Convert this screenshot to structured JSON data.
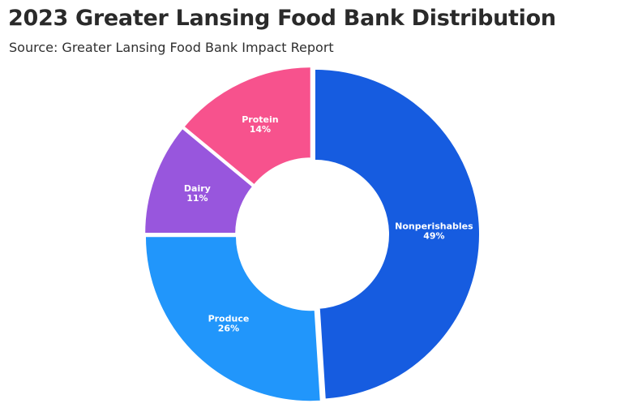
{
  "header": {
    "title": "2023 Greater Lansing Food Bank Distribution",
    "subtitle": "Source: Greater Lansing Food Bank Impact Report"
  },
  "chart_data": {
    "type": "pie",
    "donut": true,
    "title": "2023 Greater Lansing Food Bank Distribution",
    "subtitle": "Source: Greater Lansing Food Bank Impact Report",
    "slices": [
      {
        "name": "Nonperishables",
        "value": 49,
        "label": "49%",
        "color": "#165CE0"
      },
      {
        "name": "Produce",
        "value": 26,
        "label": "26%",
        "color": "#2196FB"
      },
      {
        "name": "Dairy",
        "value": 11,
        "label": "11%",
        "color": "#9856DD"
      },
      {
        "name": "Protein",
        "value": 14,
        "label": "14%",
        "color": "#F7528D"
      }
    ],
    "start_angle_deg": 0,
    "direction": "clockwise",
    "legend": "none"
  }
}
